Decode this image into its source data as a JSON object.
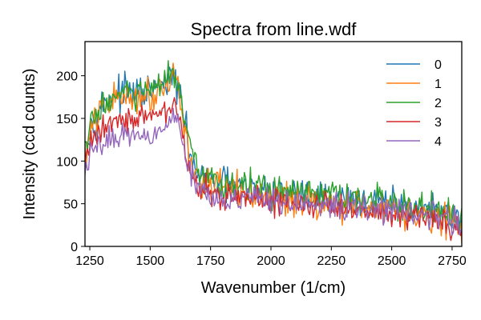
{
  "chart_data": {
    "type": "line",
    "title": "Spectra from line.wdf",
    "xlabel": "Wavenumber (1/cm)",
    "ylabel": "Intensity (ccd counts)",
    "xlim": [
      1230,
      2790
    ],
    "ylim": [
      0,
      240
    ],
    "x_ticks": [
      1250,
      1500,
      1750,
      2000,
      2250,
      2500,
      2750
    ],
    "y_ticks": [
      0,
      50,
      100,
      150,
      200
    ],
    "grid": false,
    "legend_position": "top-right",
    "x_step": 5,
    "profile_x": [
      1230,
      1260,
      1300,
      1350,
      1400,
      1450,
      1500,
      1540,
      1580,
      1600,
      1620,
      1640,
      1660,
      1680,
      1700,
      1750,
      1800,
      1900,
      2000,
      2100,
      2200,
      2300,
      2400,
      2500,
      2600,
      2700,
      2790
    ],
    "series": [
      {
        "name": "0",
        "color": "#1f77b4",
        "noise": 18,
        "profile_y": [
          110,
          145,
          165,
          178,
          180,
          178,
          180,
          185,
          195,
          198,
          182,
          145,
          118,
          95,
          82,
          76,
          72,
          68,
          64,
          60,
          58,
          55,
          52,
          50,
          46,
          40,
          28
        ]
      },
      {
        "name": "1",
        "color": "#ff7f0e",
        "noise": 18,
        "profile_y": [
          105,
          140,
          160,
          172,
          178,
          175,
          178,
          185,
          198,
          205,
          182,
          140,
          110,
          90,
          80,
          72,
          68,
          62,
          58,
          55,
          52,
          50,
          48,
          45,
          40,
          35,
          20
        ]
      },
      {
        "name": "2",
        "color": "#2ca02c",
        "noise": 18,
        "profile_y": [
          115,
          145,
          165,
          175,
          180,
          178,
          182,
          188,
          198,
          203,
          185,
          145,
          118,
          96,
          85,
          78,
          74,
          70,
          66,
          62,
          60,
          56,
          54,
          50,
          45,
          40,
          25
        ]
      },
      {
        "name": "3",
        "color": "#d62728",
        "noise": 15,
        "profile_y": [
          100,
          125,
          140,
          148,
          152,
          150,
          150,
          155,
          162,
          168,
          152,
          120,
          96,
          80,
          70,
          62,
          58,
          55,
          52,
          50,
          48,
          45,
          42,
          40,
          36,
          32,
          20
        ]
      },
      {
        "name": "4",
        "color": "#9467bd",
        "noise": 14,
        "profile_y": [
          90,
          110,
          120,
          128,
          132,
          132,
          132,
          138,
          145,
          150,
          140,
          115,
          95,
          80,
          70,
          62,
          58,
          54,
          52,
          50,
          48,
          46,
          44,
          42,
          40,
          36,
          24
        ]
      }
    ]
  }
}
